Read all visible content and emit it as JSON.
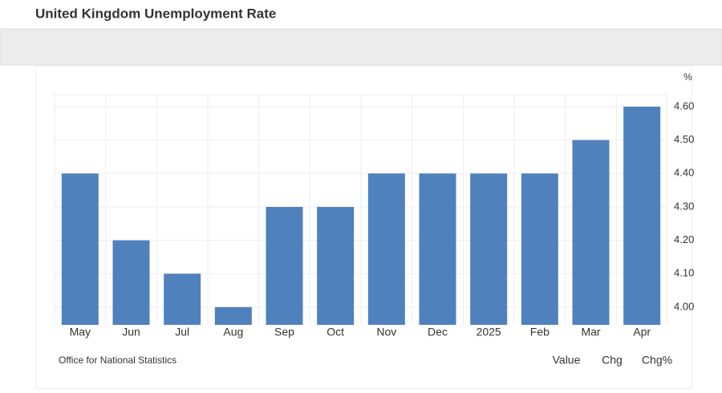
{
  "header": {
    "title": "United Kingdom Unemployment Rate"
  },
  "chart_data": {
    "type": "bar",
    "unit": "%",
    "categories": [
      "May",
      "Jun",
      "Jul",
      "Aug",
      "Sep",
      "Oct",
      "Nov",
      "Dec",
      "2025",
      "Feb",
      "Mar",
      "Apr"
    ],
    "values": [
      4.4,
      4.2,
      4.1,
      4.0,
      4.3,
      4.3,
      4.4,
      4.4,
      4.4,
      4.4,
      4.5,
      4.6
    ],
    "color": "#4f81bd",
    "ylim": [
      3.947,
      4.636
    ],
    "yticks": [
      {
        "value": 4.0,
        "label": "4.00"
      },
      {
        "value": 4.1,
        "label": "4.10"
      },
      {
        "value": 4.2,
        "label": "4.20"
      },
      {
        "value": 4.3,
        "label": "4.30"
      },
      {
        "value": 4.4,
        "label": "4.40"
      },
      {
        "value": 4.5,
        "label": "4.50"
      },
      {
        "value": 4.6,
        "label": "4.60"
      }
    ],
    "grid": true,
    "source": "Office for National Statistics"
  },
  "controls": {
    "buttons": [
      "Value",
      "Chg",
      "Chg%"
    ]
  }
}
